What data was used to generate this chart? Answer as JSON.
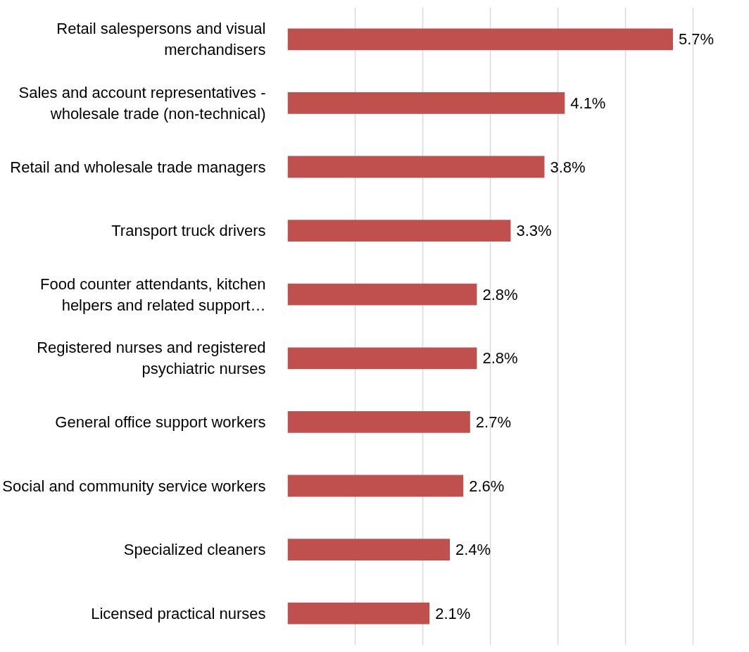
{
  "chart_data": {
    "type": "bar",
    "orientation": "horizontal",
    "categories": [
      "Retail salespersons and visual merchandisers",
      "Sales and account representatives - wholesale trade (non-technical)",
      "Retail and wholesale trade managers",
      "Transport truck drivers",
      "Food counter attendants, kitchen helpers and related support…",
      "Registered nurses and registered psychiatric nurses",
      "General office support workers",
      "Social and community service workers",
      "Specialized cleaners",
      "Licensed practical nurses"
    ],
    "values": [
      5.7,
      4.1,
      3.8,
      3.3,
      2.8,
      2.8,
      2.7,
      2.6,
      2.4,
      2.1
    ],
    "value_labels": [
      "5.7%",
      "4.1%",
      "3.8%",
      "3.3%",
      "2.8%",
      "2.8%",
      "2.7%",
      "2.6%",
      "2.4%",
      "2.1%"
    ],
    "color": "#c0504d",
    "grid": "x",
    "tick_labels": "y"
  }
}
